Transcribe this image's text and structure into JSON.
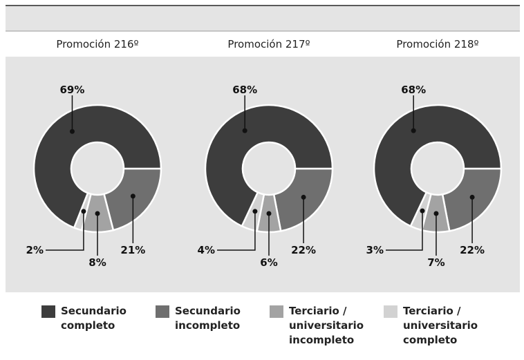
{
  "legend": {
    "names": [
      "Secundario completo",
      "Secundario incompleto",
      "Terciario / universitario incompleto",
      "Terciario / universitario completo"
    ],
    "colors": [
      "#3d3d3d",
      "#6f6f6f",
      "#a3a3a3",
      "#d2d2d2"
    ]
  },
  "chart_data": [
    {
      "type": "donut",
      "title": "Promoción 216º",
      "values": [
        69,
        21,
        8,
        2
      ],
      "value_labels": [
        "69%",
        "21%",
        "8%",
        "2%"
      ]
    },
    {
      "type": "donut",
      "title": "Promoción 217º",
      "values": [
        68,
        22,
        6,
        4
      ],
      "value_labels": [
        "68%",
        "22%",
        "6%",
        "4%"
      ]
    },
    {
      "type": "donut",
      "title": "Promoción 218º",
      "values": [
        68,
        22,
        7,
        3
      ],
      "value_labels": [
        "68%",
        "22%",
        "7%",
        "3%"
      ]
    }
  ]
}
